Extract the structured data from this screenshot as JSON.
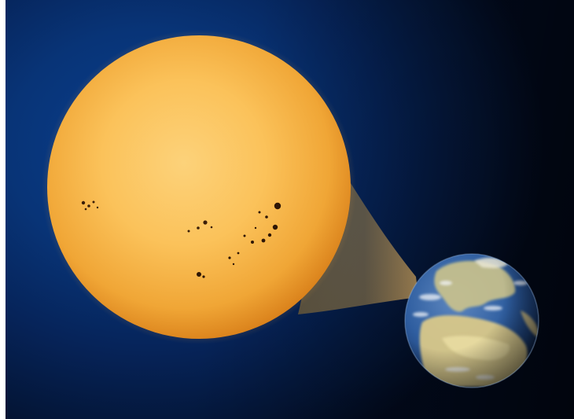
{
  "image": {
    "subject": "sun-earth-size-comparison",
    "colors": {
      "space_dark": "#020b20",
      "space_blue": "#0a3e8e",
      "sun_core": "#fbc25a",
      "sun_edge": "#e08a1c",
      "sunspot": "#3a1e08",
      "ocean": "#2f5ea0",
      "land": "#d9c98a"
    },
    "sun": {
      "feature": "sunspot-groups",
      "sunspot_groups": 4
    },
    "earth": {
      "feature": "europe-africa-view"
    },
    "connector": {
      "icon": "magnify-cone"
    }
  }
}
